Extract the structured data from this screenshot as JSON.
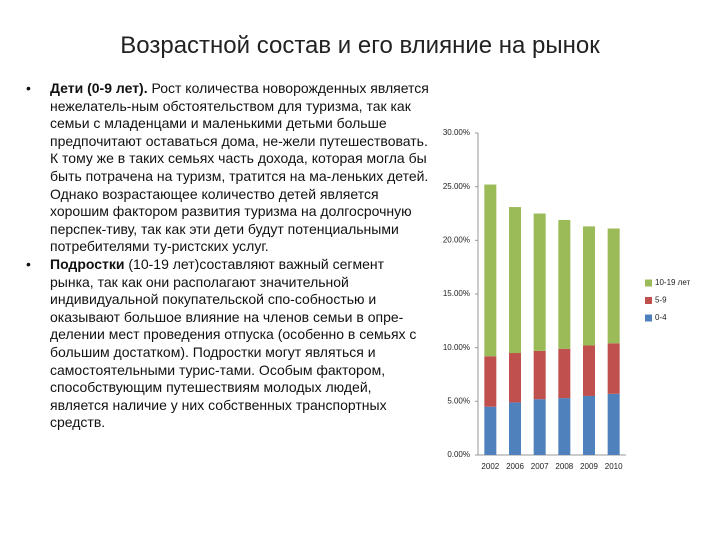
{
  "header": {
    "title": "Возрастной состав и его влияние на рынок"
  },
  "bullets": [
    {
      "lead": "Дети (0-9 лет).",
      "text": " Рост количества новорожденных является нежелатель-ным обстоятельством для туризма, так как семьи с младенцами и маленькими детьми больше предпочитают оставаться дома, не-жели путешествовать. К тому же в таких семьях часть дохода, которая могла бы быть потрачена на туризм, тратится на ма-леньких детей. Однако возрастающее количество детей является хорошим фактором развития туризма на долгосрочную перспек-тиву, так как эти дети будут потенциальными потребителями ту-ристских услуг."
    },
    {
      "lead": "Подростки",
      "text": " (10-19 лет)составляют важный сегмент рынка, так как они располагают значительной индивидуальной покупательской спо-собностью и оказывают большое влияние на членов семьи в опре-делении мест проведения отпуска (особенно в семьях с большим достатком). Подростки могут являться и самостоятельными турис-тами. Особым фактором, способствующим путешествиям молодых людей, является наличие у них собственных транспортных средств."
    }
  ],
  "chart_data": {
    "type": "stacked_bar",
    "categories": [
      "2002",
      "2006",
      "2007",
      "2008",
      "2009",
      "2010"
    ],
    "series": [
      {
        "name": "0-4",
        "color": "#4f81bd",
        "values": [
          4.5,
          4.9,
          5.2,
          5.3,
          5.5,
          5.7
        ]
      },
      {
        "name": "5-9",
        "color": "#c0504d",
        "values": [
          4.7,
          4.6,
          4.5,
          4.6,
          4.7,
          4.7
        ]
      },
      {
        "name": "10-19 лет",
        "color": "#9bbb59",
        "values": [
          16.0,
          13.6,
          12.8,
          12.0,
          11.1,
          10.7
        ]
      }
    ],
    "ylim": [
      0,
      30
    ],
    "yticks": [
      {
        "value": 0,
        "label": "0.00%"
      },
      {
        "value": 5,
        "label": "5.00%"
      },
      {
        "value": 10,
        "label": "10.00%"
      },
      {
        "value": 15,
        "label": "15.00%"
      },
      {
        "value": 20,
        "label": "20.00%"
      },
      {
        "value": 25,
        "label": "25.00%"
      },
      {
        "value": 30,
        "label": "30.00%"
      }
    ],
    "grid": false,
    "legend": "right"
  }
}
